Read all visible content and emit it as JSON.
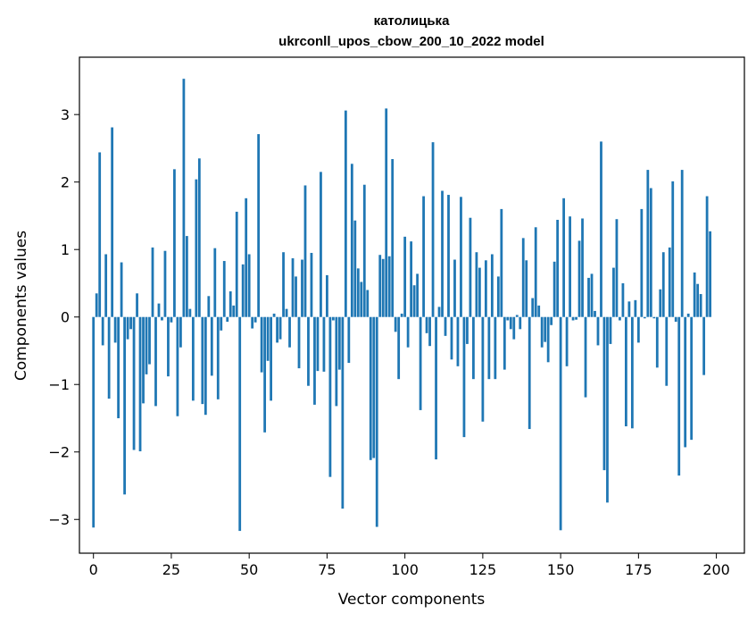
{
  "chart_data": {
    "type": "bar",
    "title": "католицька",
    "subtitle": "ukrconll_upos_cbow_200_10_2022 model",
    "xlabel": "Vector components",
    "ylabel": "Components values",
    "xlim": [
      -4.5,
      209
    ],
    "ylim": [
      -3.5,
      3.85
    ],
    "xticks": [
      0,
      25,
      50,
      75,
      100,
      125,
      150,
      175,
      200
    ],
    "yticks": [
      -3,
      -2,
      -1,
      0,
      1,
      2,
      3
    ],
    "xtick_labels": [
      "0",
      "25",
      "50",
      "75",
      "100",
      "125",
      "150",
      "175",
      "200"
    ],
    "ytick_labels": [
      "−3",
      "−2",
      "−1",
      "0",
      "1",
      "2",
      "3"
    ],
    "grid": false,
    "bar_color": "#1f77b4",
    "values": [
      -3.12,
      0.35,
      2.44,
      -0.42,
      0.93,
      -1.21,
      2.81,
      -0.38,
      -1.5,
      0.81,
      -2.63,
      -0.33,
      -0.18,
      -1.97,
      0.35,
      -1.99,
      -1.28,
      -0.85,
      -0.7,
      1.03,
      -1.32,
      0.2,
      -0.05,
      0.98,
      -0.88,
      -0.08,
      2.19,
      -1.47,
      -0.45,
      3.53,
      1.2,
      0.12,
      -1.24,
      2.04,
      2.35,
      -1.29,
      -1.45,
      0.31,
      -0.87,
      1.02,
      -1.22,
      -0.2,
      0.83,
      -0.07,
      0.38,
      0.17,
      1.56,
      -3.17,
      0.78,
      1.76,
      0.93,
      -0.17,
      -0.08,
      2.71,
      -0.82,
      -1.71,
      -0.65,
      -1.24,
      0.05,
      -0.38,
      -0.33,
      0.96,
      0.12,
      -0.45,
      0.87,
      0.6,
      -0.76,
      0.85,
      1.95,
      -1.02,
      0.95,
      -1.3,
      -0.8,
      2.15,
      -0.81,
      0.62,
      -2.37,
      -0.05,
      -1.32,
      -0.78,
      -2.84,
      3.06,
      -0.68,
      2.27,
      1.43,
      0.72,
      0.52,
      1.96,
      0.4,
      -2.12,
      -2.09,
      -3.11,
      0.92,
      0.86,
      3.09,
      0.9,
      2.34,
      -0.22,
      -0.92,
      0.05,
      1.19,
      -0.45,
      1.12,
      0.47,
      0.64,
      -1.38,
      1.79,
      -0.24,
      -0.43,
      2.59,
      -2.11,
      0.15,
      1.87,
      -0.28,
      1.81,
      -0.63,
      0.85,
      -0.73,
      1.78,
      -1.78,
      -0.4,
      1.47,
      -0.92,
      0.96,
      0.73,
      -1.55,
      0.84,
      -0.92,
      0.93,
      -0.92,
      0.6,
      1.6,
      -0.78,
      -0.05,
      -0.18,
      -0.33,
      0.03,
      -0.18,
      1.17,
      0.84,
      -1.66,
      0.28,
      1.33,
      0.17,
      -0.45,
      -0.37,
      -0.67,
      -0.12,
      0.82,
      1.44,
      -3.16,
      1.76,
      -0.73,
      1.49,
      -0.05,
      -0.04,
      1.13,
      1.46,
      -1.19,
      0.58,
      0.64,
      0.09,
      -0.42,
      2.6,
      -2.27,
      -2.75,
      -0.4,
      0.73,
      1.45,
      -0.05,
      0.5,
      -1.62,
      0.23,
      -1.65,
      0.25,
      -0.38,
      1.6,
      -0.02,
      2.18,
      1.91,
      -0.02,
      -0.75,
      0.41,
      0.96,
      -1.02,
      1.03,
      2.01,
      -0.07,
      -2.35,
      2.18,
      -1.93,
      0.05,
      -1.82,
      0.66,
      0.49,
      0.34,
      -0.86,
      1.79,
      1.27
    ]
  }
}
